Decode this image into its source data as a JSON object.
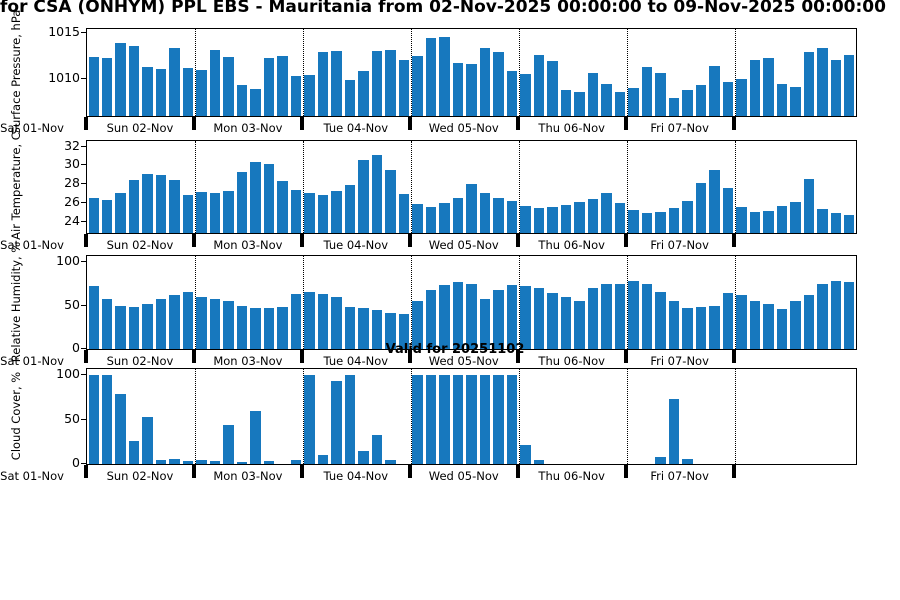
{
  "title": "for CSA (ONHYM) PPL EBS  - Mauritania from 02-Nov-2025 00:00:00 to 09-Nov-2025 00:00:00",
  "annotation": "Valid for 20251102",
  "bar_color": "#1778be",
  "x_tick_labels": [
    "Sat 01-Nov",
    "Sun 02-Nov",
    "Mon 03-Nov",
    "Tue 04-Nov",
    "Wed 05-Nov",
    "Thu 06-Nov",
    "Fri 07-Nov"
  ],
  "chart_data": [
    {
      "type": "bar",
      "ylabel": "Surface Pressure, hPa",
      "ylim": [
        1006,
        1015.4
      ],
      "yticks": [
        1010,
        1015
      ],
      "bars_per_day": 8,
      "grid": "vertical-dotted-day-boundaries",
      "values": [
        1012.4,
        1012.3,
        1013.9,
        1013.6,
        1011.3,
        1011.1,
        1013.4,
        1011.2,
        1011.0,
        1013.1,
        1012.4,
        1009.4,
        1008.9,
        1012.3,
        1012.5,
        1010.3,
        1010.4,
        1012.9,
        1013.0,
        1009.9,
        1010.9,
        1013.0,
        1013.1,
        1012.0,
        1012.5,
        1014.4,
        1014.5,
        1011.7,
        1011.6,
        1013.4,
        1012.9,
        1010.9,
        1010.5,
        1012.6,
        1011.9,
        1008.8,
        1008.6,
        1010.6,
        1009.5,
        1008.6,
        1009.0,
        1011.3,
        1010.7,
        1008.0,
        1008.8,
        1009.3,
        1011.4,
        1009.7,
        1010.0,
        1012.1,
        1012.3,
        1009.5,
        1009.1,
        1012.9,
        1013.3,
        1012.0,
        1012.6
      ]
    },
    {
      "type": "bar",
      "ylabel": "Air Temperature, C",
      "ylim": [
        22.8,
        32.6
      ],
      "yticks": [
        24,
        26,
        28,
        30,
        32
      ],
      "bars_per_day": 8,
      "grid": "vertical-dotted-day-boundaries",
      "values": [
        26.5,
        26.3,
        27.1,
        28.4,
        29.1,
        29.0,
        28.4,
        26.9,
        27.2,
        27.1,
        27.3,
        29.3,
        30.4,
        30.2,
        28.3,
        27.4,
        27.1,
        26.9,
        27.3,
        27.9,
        30.6,
        31.1,
        29.5,
        27.0,
        25.9,
        25.6,
        26.0,
        26.5,
        28.0,
        27.1,
        26.5,
        26.2,
        25.7,
        25.5,
        25.6,
        25.8,
        26.1,
        26.4,
        27.1,
        26.0,
        25.3,
        24.9,
        25.0,
        25.5,
        26.2,
        28.1,
        29.5,
        27.6,
        25.6,
        25.0,
        25.1,
        25.7,
        26.1,
        28.6,
        25.4,
        24.9,
        24.7
      ]
    },
    {
      "type": "bar",
      "ylabel": "Relative Humidity, %",
      "ylim": [
        0,
        107
      ],
      "yticks": [
        0,
        50,
        100
      ],
      "bars_per_day": 8,
      "grid": "vertical-dotted-day-boundaries",
      "values": [
        72,
        58,
        50,
        48,
        52,
        57,
        62,
        66,
        60,
        57,
        55,
        50,
        47,
        47,
        48,
        63,
        66,
        63,
        60,
        48,
        47,
        45,
        42,
        40,
        55,
        68,
        74,
        77,
        75,
        57,
        68,
        74,
        72,
        70,
        65,
        60,
        55,
        70,
        75,
        75,
        78,
        75,
        66,
        55,
        47,
        48,
        50,
        65,
        62,
        55,
        52,
        46,
        55,
        62,
        75,
        78,
        77
      ]
    },
    {
      "type": "bar",
      "ylabel": "Cloud Cover, %",
      "ylim": [
        0,
        107
      ],
      "yticks": [
        0,
        50,
        100
      ],
      "bars_per_day": 8,
      "grid": "vertical-dotted-day-boundaries",
      "values": [
        100,
        100,
        79,
        26,
        53,
        5,
        6,
        3,
        5,
        3,
        44,
        2,
        60,
        3,
        0,
        4,
        100,
        10,
        93,
        100,
        15,
        33,
        5,
        0,
        100,
        100,
        100,
        100,
        100,
        100,
        100,
        100,
        21,
        4,
        0,
        0,
        0,
        0,
        0,
        0,
        0,
        0,
        8,
        73,
        6,
        0,
        0,
        0,
        0,
        0,
        0,
        0,
        0,
        0,
        0,
        0,
        0
      ]
    }
  ]
}
